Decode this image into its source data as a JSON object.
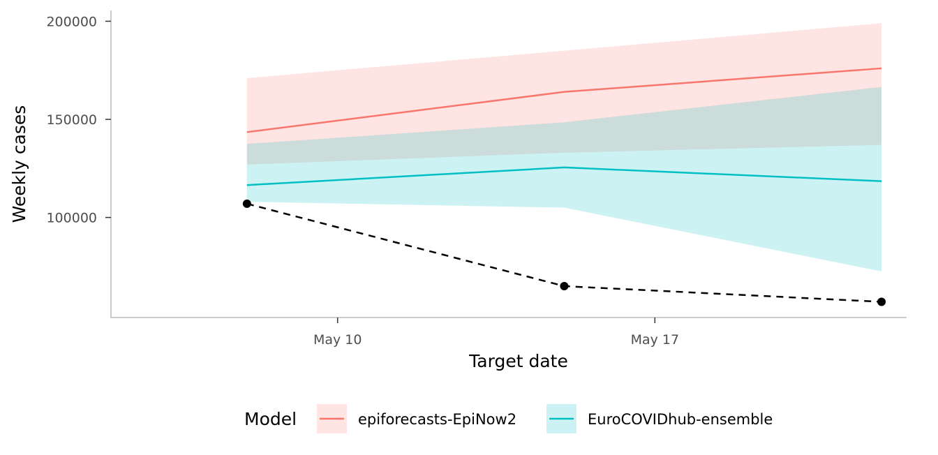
{
  "chart_data": {
    "type": "line",
    "xlabel": "Target date",
    "ylabel": "Weekly cases",
    "x_dates": [
      "2021-05-08",
      "2021-05-15",
      "2021-05-22"
    ],
    "x_ticks": [
      {
        "date": "2021-05-10",
        "label": "May 10"
      },
      {
        "date": "2021-05-17",
        "label": "May 17"
      }
    ],
    "xlim": [
      "2021-05-05",
      "2021-05-23"
    ],
    "y_ticks": [
      100000,
      150000,
      200000
    ],
    "y_tick_labels": [
      "100000",
      "150000",
      "200000"
    ],
    "ylim": [
      49000,
      205500
    ],
    "series": [
      {
        "name": "epiforecasts-EpiNow2",
        "color": "#F8766D",
        "median": [
          143500,
          164000,
          176000
        ],
        "lower": [
          127000,
          133000,
          137000
        ],
        "upper": [
          171000,
          185000,
          199000
        ]
      },
      {
        "name": "EuroCOVIDhub-ensemble",
        "color": "#00BFC4",
        "median": [
          116500,
          125500,
          118500
        ],
        "lower": [
          108000,
          105000,
          72500
        ],
        "upper": [
          137500,
          148500,
          166500
        ]
      }
    ],
    "observed": {
      "values": [
        107000,
        65000,
        57000
      ],
      "color": "#000000",
      "style": "dashed"
    },
    "legend": {
      "title": "Model",
      "position": "bottom"
    },
    "grid": false
  }
}
